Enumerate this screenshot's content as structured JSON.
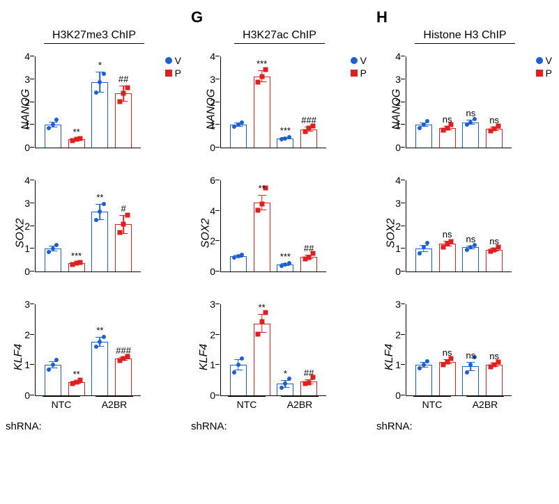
{
  "colors": {
    "v": "#1a5fd4",
    "p": "#e02020",
    "axis": "#000000",
    "bg": "#ffffff"
  },
  "legend": {
    "v": "V",
    "p": "P"
  },
  "panelLetters": {
    "col1": "",
    "col2": "G",
    "col3": "H"
  },
  "columns": [
    {
      "title": "H3K27me3 ChIP"
    },
    {
      "title": "H3K27ac ChIP"
    },
    {
      "title": "Histone H3 ChIP"
    }
  ],
  "genes": [
    "NANOG",
    "SOX2",
    "KLF4"
  ],
  "xgroups": [
    "NTC",
    "A2BR"
  ],
  "shrna_label": "shRNA:",
  "charts": [
    [
      {
        "ymax": 4,
        "ystep": 1,
        "bars": [
          {
            "c": "v",
            "val": 1.0,
            "err": 0.12,
            "pts": [
              0.85,
              1.0,
              1.2
            ],
            "sig": ""
          },
          {
            "c": "p",
            "val": 0.35,
            "err": 0.05,
            "pts": [
              0.3,
              0.35,
              0.4
            ],
            "sig": "**"
          },
          {
            "c": "v",
            "val": 2.85,
            "err": 0.45,
            "pts": [
              2.4,
              2.85,
              3.2
            ],
            "sig": "*"
          },
          {
            "c": "p",
            "val": 2.35,
            "err": 0.35,
            "pts": [
              2.0,
              2.35,
              2.6
            ],
            "sig": "##"
          }
        ]
      },
      {
        "ymax": 4,
        "ystep": 1,
        "bars": [
          {
            "c": "v",
            "val": 1.0,
            "err": 0.1,
            "pts": [
              0.9,
              1.0,
              1.1
            ],
            "sig": ""
          },
          {
            "c": "p",
            "val": 3.1,
            "err": 0.25,
            "pts": [
              2.85,
              3.1,
              3.4
            ],
            "sig": "***"
          },
          {
            "c": "v",
            "val": 0.4,
            "err": 0.05,
            "pts": [
              0.35,
              0.4,
              0.45
            ],
            "sig": "***"
          },
          {
            "c": "p",
            "val": 0.8,
            "err": 0.1,
            "pts": [
              0.7,
              0.85,
              0.95
            ],
            "sig": "###"
          }
        ]
      },
      {
        "ymax": 4,
        "ystep": 1,
        "bars": [
          {
            "c": "v",
            "val": 1.0,
            "err": 0.1,
            "pts": [
              0.85,
              1.0,
              1.15
            ],
            "sig": ""
          },
          {
            "c": "p",
            "val": 0.85,
            "err": 0.1,
            "pts": [
              0.75,
              0.85,
              1.0
            ],
            "sig": "ns"
          },
          {
            "c": "v",
            "val": 1.1,
            "err": 0.1,
            "pts": [
              1.0,
              1.1,
              1.25
            ],
            "sig": "ns"
          },
          {
            "c": "p",
            "val": 0.82,
            "err": 0.1,
            "pts": [
              0.72,
              0.82,
              0.95
            ],
            "sig": "ns"
          }
        ]
      }
    ],
    [
      {
        "ymax": 4,
        "ystep": 1,
        "bars": [
          {
            "c": "v",
            "val": 1.0,
            "err": 0.12,
            "pts": [
              0.85,
              1.0,
              1.15
            ],
            "sig": ""
          },
          {
            "c": "p",
            "val": 0.35,
            "err": 0.05,
            "pts": [
              0.3,
              0.35,
              0.4
            ],
            "sig": "***"
          },
          {
            "c": "v",
            "val": 2.6,
            "err": 0.35,
            "pts": [
              2.25,
              2.6,
              2.95
            ],
            "sig": "**"
          },
          {
            "c": "p",
            "val": 2.05,
            "err": 0.4,
            "pts": [
              1.7,
              2.05,
              2.45
            ],
            "sig": "#"
          }
        ]
      },
      {
        "ymax": 6,
        "ystep": 2,
        "bars": [
          {
            "c": "v",
            "val": 1.0,
            "err": 0.1,
            "pts": [
              0.9,
              1.0,
              1.1
            ],
            "sig": ""
          },
          {
            "c": "p",
            "val": 4.5,
            "err": 0.5,
            "pts": [
              4.0,
              4.4,
              5.45
            ],
            "sig": "**"
          },
          {
            "c": "v",
            "val": 0.45,
            "err": 0.08,
            "pts": [
              0.38,
              0.45,
              0.55
            ],
            "sig": "***"
          },
          {
            "c": "p",
            "val": 0.95,
            "err": 0.15,
            "pts": [
              0.8,
              0.9,
              1.2
            ],
            "sig": "##"
          }
        ]
      },
      {
        "ymax": 4,
        "ystep": 1,
        "bars": [
          {
            "c": "v",
            "val": 1.0,
            "err": 0.15,
            "pts": [
              0.8,
              1.05,
              1.25
            ],
            "sig": ""
          },
          {
            "c": "p",
            "val": 1.2,
            "err": 0.12,
            "pts": [
              1.05,
              1.2,
              1.3
            ],
            "sig": "ns"
          },
          {
            "c": "v",
            "val": 1.05,
            "err": 0.08,
            "pts": [
              0.95,
              1.05,
              1.15
            ],
            "sig": "ns"
          },
          {
            "c": "p",
            "val": 0.95,
            "err": 0.08,
            "pts": [
              0.88,
              0.95,
              1.05
            ],
            "sig": "ns"
          }
        ]
      }
    ],
    [
      {
        "ymax": 3,
        "ystep": 1,
        "bars": [
          {
            "c": "v",
            "val": 1.0,
            "err": 0.12,
            "pts": [
              0.85,
              1.0,
              1.15
            ],
            "sig": ""
          },
          {
            "c": "p",
            "val": 0.43,
            "err": 0.05,
            "pts": [
              0.38,
              0.43,
              0.5
            ],
            "sig": "**"
          },
          {
            "c": "v",
            "val": 1.75,
            "err": 0.15,
            "pts": [
              1.6,
              1.75,
              1.9
            ],
            "sig": "**"
          },
          {
            "c": "p",
            "val": 1.2,
            "err": 0.06,
            "pts": [
              1.14,
              1.2,
              1.28
            ],
            "sig": "###"
          }
        ]
      },
      {
        "ymax": 3,
        "ystep": 1,
        "bars": [
          {
            "c": "v",
            "val": 1.0,
            "err": 0.18,
            "pts": [
              0.75,
              1.0,
              1.2
            ],
            "sig": ""
          },
          {
            "c": "p",
            "val": 2.35,
            "err": 0.3,
            "pts": [
              2.0,
              2.4,
              2.7
            ],
            "sig": "**"
          },
          {
            "c": "v",
            "val": 0.38,
            "err": 0.12,
            "pts": [
              0.25,
              0.38,
              0.55
            ],
            "sig": "*"
          },
          {
            "c": "p",
            "val": 0.45,
            "err": 0.08,
            "pts": [
              0.38,
              0.42,
              0.58
            ],
            "sig": "##"
          }
        ]
      },
      {
        "ymax": 3,
        "ystep": 1,
        "bars": [
          {
            "c": "v",
            "val": 1.0,
            "err": 0.1,
            "pts": [
              0.88,
              1.0,
              1.12
            ],
            "sig": ""
          },
          {
            "c": "p",
            "val": 1.1,
            "err": 0.08,
            "pts": [
              1.0,
              1.1,
              1.2
            ],
            "sig": "ns"
          },
          {
            "c": "v",
            "val": 0.95,
            "err": 0.15,
            "pts": [
              0.75,
              1.0,
              1.25
            ],
            "sig": "ns"
          },
          {
            "c": "p",
            "val": 1.0,
            "err": 0.06,
            "pts": [
              0.94,
              1.0,
              1.08
            ],
            "sig": "ns"
          }
        ]
      }
    ]
  ]
}
